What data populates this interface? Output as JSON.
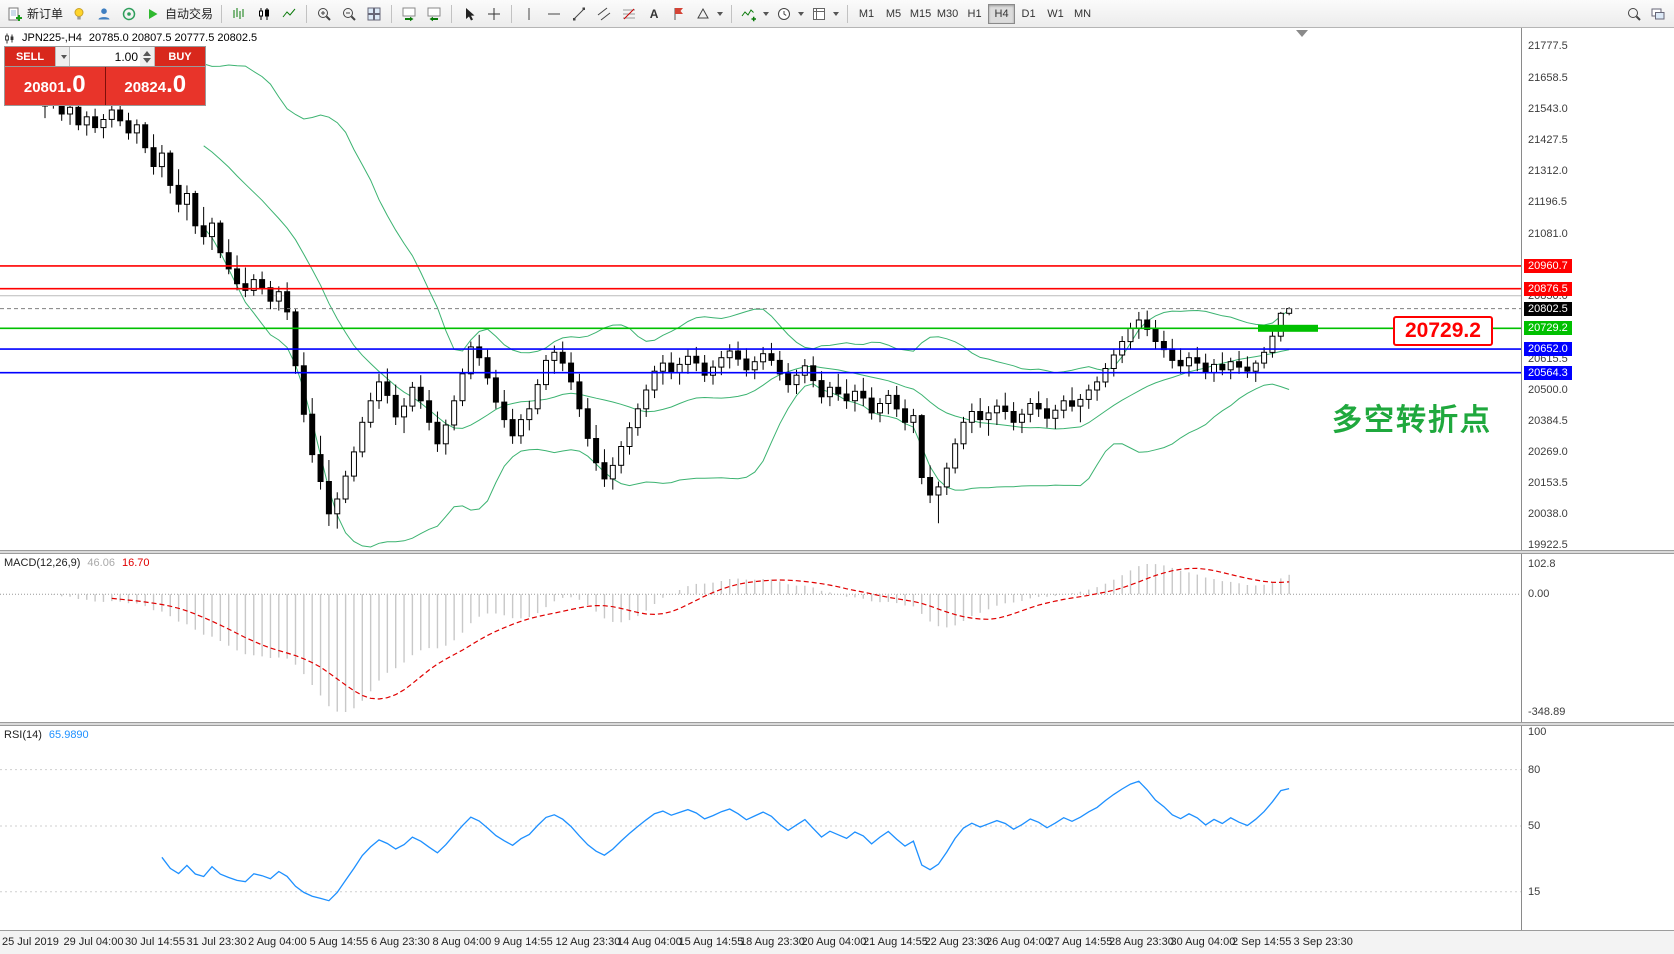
{
  "toolbar": {
    "new_order_label": "新订单",
    "auto_trading_label": "自动交易",
    "text_tool_glyph": "A",
    "timeframes": [
      "M1",
      "M5",
      "M15",
      "M30",
      "H1",
      "H4",
      "D1",
      "W1",
      "MN"
    ],
    "active_timeframe": "H4"
  },
  "chart": {
    "symbol_info": "JPN225-,H4",
    "ohlc_text": "20785.0 20807.5 20777.5 20802.5",
    "one_click": {
      "sell_label": "SELL",
      "buy_label": "BUY",
      "volume": "1.00",
      "sell_price_main": "20801",
      "sell_price_frac": ".0",
      "buy_price_main": "20824",
      "buy_price_frac": ".0"
    },
    "levels": [
      {
        "price": 20960.7,
        "label": "20960.7",
        "color": "#FF0000"
      },
      {
        "price": 20876.5,
        "label": "20876.5",
        "color": "#FF0000"
      },
      {
        "price": 20729.2,
        "label": "20729.2",
        "color": "#00C000"
      },
      {
        "price": 20652.0,
        "label": "20652.0",
        "color": "#0000FF"
      },
      {
        "price": 20564.3,
        "label": "20564.3",
        "color": "#0000FF"
      }
    ],
    "current_price": {
      "price": 20802.5,
      "label": "20802.5"
    },
    "gray_line": {
      "price": 20850.0,
      "label": "20850.0"
    },
    "highlight": {
      "price": 20729.2,
      "label": "20729.2"
    },
    "annotation": "多空转折点",
    "axis_labels": [
      21777.5,
      21658.5,
      21543.0,
      21427.5,
      21312.0,
      21196.5,
      21081.0,
      20850.0,
      20615.5,
      20500.0,
      20384.5,
      20269.0,
      20153.5,
      20038.0,
      19922.5
    ]
  },
  "chart_data": {
    "type": "candlestick",
    "symbol": "JPN225-",
    "timeframe": "H4",
    "candles": [
      [
        21555,
        21600,
        21510,
        21580
      ],
      [
        21580,
        21625,
        21545,
        21560
      ],
      [
        21560,
        21590,
        21500,
        21525
      ],
      [
        21525,
        21565,
        21485,
        21550
      ],
      [
        21550,
        21575,
        21465,
        21485
      ],
      [
        21485,
        21535,
        21445,
        21515
      ],
      [
        21515,
        21545,
        21455,
        21475
      ],
      [
        21475,
        21525,
        21435,
        21505
      ],
      [
        21505,
        21560,
        21475,
        21540
      ],
      [
        21540,
        21575,
        21480,
        21500
      ],
      [
        21500,
        21530,
        21430,
        21455
      ],
      [
        21455,
        21505,
        21415,
        21485
      ],
      [
        21485,
        21495,
        21380,
        21400
      ],
      [
        21400,
        21450,
        21300,
        21330
      ],
      [
        21330,
        21410,
        21290,
        21380
      ],
      [
        21380,
        21390,
        21230,
        21260
      ],
      [
        21260,
        21320,
        21160,
        21190
      ],
      [
        21190,
        21260,
        21130,
        21230
      ],
      [
        21230,
        21240,
        21080,
        21110
      ],
      [
        21110,
        21180,
        21040,
        21070
      ],
      [
        21070,
        21140,
        21020,
        21120
      ],
      [
        21120,
        21130,
        20990,
        21010
      ],
      [
        21010,
        21060,
        20930,
        20950
      ],
      [
        20950,
        21000,
        20870,
        20895
      ],
      [
        20895,
        20955,
        20845,
        20870
      ],
      [
        20870,
        20930,
        20850,
        20910
      ],
      [
        20910,
        20940,
        20855,
        20880
      ],
      [
        20880,
        20905,
        20800,
        20830
      ],
      [
        20830,
        20885,
        20795,
        20865
      ],
      [
        20865,
        20900,
        20760,
        20790
      ],
      [
        20790,
        20800,
        20560,
        20590
      ],
      [
        20590,
        20640,
        20380,
        20410
      ],
      [
        20410,
        20470,
        20230,
        20260
      ],
      [
        20260,
        20330,
        20130,
        20160
      ],
      [
        20160,
        20240,
        19995,
        20040
      ],
      [
        20040,
        20120,
        19985,
        20095
      ],
      [
        20095,
        20200,
        20080,
        20180
      ],
      [
        20180,
        20290,
        20160,
        20270
      ],
      [
        20270,
        20400,
        20250,
        20380
      ],
      [
        20380,
        20490,
        20360,
        20460
      ],
      [
        20460,
        20560,
        20430,
        20530
      ],
      [
        20530,
        20580,
        20450,
        20480
      ],
      [
        20480,
        20520,
        20370,
        20400
      ],
      [
        20400,
        20470,
        20340,
        20440
      ],
      [
        20440,
        20530,
        20420,
        20510
      ],
      [
        20510,
        20555,
        20430,
        20460
      ],
      [
        20460,
        20500,
        20350,
        20380
      ],
      [
        20380,
        20420,
        20270,
        20300
      ],
      [
        20300,
        20390,
        20260,
        20370
      ],
      [
        20370,
        20480,
        20350,
        20460
      ],
      [
        20460,
        20580,
        20440,
        20560
      ],
      [
        20560,
        20680,
        20540,
        20660
      ],
      [
        20660,
        20705,
        20590,
        20620
      ],
      [
        20620,
        20650,
        20520,
        20545
      ],
      [
        20545,
        20575,
        20430,
        20455
      ],
      [
        20455,
        20500,
        20360,
        20390
      ],
      [
        20390,
        20430,
        20300,
        20330
      ],
      [
        20330,
        20410,
        20300,
        20390
      ],
      [
        20390,
        20460,
        20350,
        20430
      ],
      [
        20430,
        20540,
        20410,
        20520
      ],
      [
        20520,
        20630,
        20500,
        20610
      ],
      [
        20610,
        20665,
        20560,
        20640
      ],
      [
        20640,
        20680,
        20570,
        20600
      ],
      [
        20600,
        20640,
        20500,
        20530
      ],
      [
        20530,
        20560,
        20400,
        20430
      ],
      [
        20430,
        20470,
        20290,
        20320
      ],
      [
        20320,
        20370,
        20200,
        20230
      ],
      [
        20230,
        20280,
        20140,
        20170
      ],
      [
        20170,
        20250,
        20130,
        20220
      ],
      [
        20220,
        20310,
        20190,
        20290
      ],
      [
        20290,
        20380,
        20260,
        20360
      ],
      [
        20360,
        20450,
        20330,
        20430
      ],
      [
        20430,
        20520,
        20400,
        20500
      ],
      [
        20500,
        20590,
        20470,
        20570
      ],
      [
        20570,
        20630,
        20520,
        20600
      ],
      [
        20600,
        20640,
        20540,
        20565
      ],
      [
        20565,
        20620,
        20520,
        20595
      ],
      [
        20595,
        20650,
        20560,
        20625
      ],
      [
        20625,
        20660,
        20570,
        20600
      ],
      [
        20600,
        20630,
        20530,
        20555
      ],
      [
        20555,
        20610,
        20520,
        20585
      ],
      [
        20585,
        20645,
        20555,
        20620
      ],
      [
        20620,
        20670,
        20580,
        20645
      ],
      [
        20645,
        20680,
        20590,
        20615
      ],
      [
        20615,
        20655,
        20550,
        20575
      ],
      [
        20575,
        20625,
        20540,
        20605
      ],
      [
        20605,
        20660,
        20575,
        20635
      ],
      [
        20635,
        20675,
        20590,
        20610
      ],
      [
        20610,
        20645,
        20535,
        20560
      ],
      [
        20560,
        20600,
        20490,
        20520
      ],
      [
        20520,
        20575,
        20485,
        20555
      ],
      [
        20555,
        20615,
        20525,
        20590
      ],
      [
        20590,
        20625,
        20510,
        20535
      ],
      [
        20535,
        20570,
        20450,
        20475
      ],
      [
        20475,
        20530,
        20440,
        20510
      ],
      [
        20510,
        20560,
        20460,
        20485
      ],
      [
        20485,
        20540,
        20430,
        20460
      ],
      [
        20460,
        20520,
        20420,
        20495
      ],
      [
        20495,
        20545,
        20440,
        20470
      ],
      [
        20470,
        20510,
        20390,
        20415
      ],
      [
        20415,
        20470,
        20380,
        20450
      ],
      [
        20450,
        20500,
        20410,
        20480
      ],
      [
        20480,
        20515,
        20400,
        20430
      ],
      [
        20430,
        20465,
        20350,
        20380
      ],
      [
        20380,
        20430,
        20340,
        20405
      ],
      [
        20405,
        20410,
        20150,
        20175
      ],
      [
        20175,
        20220,
        20080,
        20110
      ],
      [
        20110,
        20160,
        20005,
        20140
      ],
      [
        20140,
        20230,
        20110,
        20210
      ],
      [
        20210,
        20320,
        20190,
        20300
      ],
      [
        20300,
        20400,
        20280,
        20380
      ],
      [
        20380,
        20450,
        20340,
        20420
      ],
      [
        20420,
        20470,
        20360,
        20390
      ],
      [
        20390,
        20440,
        20330,
        20415
      ],
      [
        20415,
        20465,
        20370,
        20440
      ],
      [
        20440,
        20490,
        20390,
        20420
      ],
      [
        20420,
        20455,
        20350,
        20380
      ],
      [
        20380,
        20430,
        20340,
        20410
      ],
      [
        20410,
        20470,
        20380,
        20450
      ],
      [
        20450,
        20495,
        20400,
        20430
      ],
      [
        20430,
        20470,
        20360,
        20395
      ],
      [
        20395,
        20445,
        20355,
        20425
      ],
      [
        20425,
        20480,
        20395,
        20460
      ],
      [
        20460,
        20510,
        20420,
        20440
      ],
      [
        20440,
        20485,
        20380,
        20465
      ],
      [
        20465,
        20520,
        20430,
        20500
      ],
      [
        20500,
        20550,
        20460,
        20530
      ],
      [
        20530,
        20600,
        20510,
        20580
      ],
      [
        20580,
        20650,
        20550,
        20630
      ],
      [
        20630,
        20700,
        20600,
        20680
      ],
      [
        20680,
        20750,
        20650,
        20730
      ],
      [
        20730,
        20790,
        20690,
        20760
      ],
      [
        20760,
        20795,
        20700,
        20725
      ],
      [
        20725,
        20760,
        20650,
        20680
      ],
      [
        20680,
        20720,
        20620,
        20650
      ],
      [
        20650,
        20690,
        20580,
        20610
      ],
      [
        20610,
        20655,
        20560,
        20590
      ],
      [
        20590,
        20640,
        20550,
        20620
      ],
      [
        20620,
        20660,
        20570,
        20600
      ],
      [
        20600,
        20635,
        20540,
        20565
      ],
      [
        20565,
        20615,
        20530,
        20595
      ],
      [
        20595,
        20640,
        20555,
        20575
      ],
      [
        20575,
        20620,
        20540,
        20605
      ],
      [
        20605,
        20645,
        20560,
        20585
      ],
      [
        20585,
        20625,
        20545,
        20570
      ],
      [
        20570,
        20610,
        20530,
        20600
      ],
      [
        20600,
        20660,
        20580,
        20640
      ],
      [
        20640,
        20720,
        20620,
        20700
      ],
      [
        20700,
        20790,
        20680,
        20785
      ],
      [
        20785,
        20807.5,
        20777.5,
        20802.5
      ]
    ],
    "indicators": {
      "bollinger": {
        "period": 20,
        "deviation": 2
      },
      "macd": {
        "label": "MACD(12,26,9)",
        "value_main": "46.06",
        "value_signal": "16.70",
        "fast": 12,
        "slow": 26,
        "signal": 9,
        "axis": [
          "102.8",
          "0.00",
          "-348.89"
        ]
      },
      "rsi": {
        "label": "RSI(14)",
        "value": "65.9890",
        "period": 14,
        "axis": [
          100,
          80,
          50,
          15
        ]
      }
    }
  },
  "time_axis": [
    "25 Jul 2019",
    "29 Jul 04:00",
    "30 Jul 14:55",
    "31 Jul 23:30",
    "2 Aug 04:00",
    "5 Aug 14:55",
    "6 Aug 23:30",
    "8 Aug 04:00",
    "9 Aug 14:55",
    "12 Aug 23:30",
    "14 Aug 04:00",
    "15 Aug 14:55",
    "18 Aug 23:30",
    "20 Aug 04:00",
    "21 Aug 14:55",
    "22 Aug 23:30",
    "26 Aug 04:00",
    "27 Aug 14:55",
    "28 Aug 23:30",
    "30 Aug 04:00",
    "2 Sep 14:55",
    "3 Sep 23:30"
  ]
}
